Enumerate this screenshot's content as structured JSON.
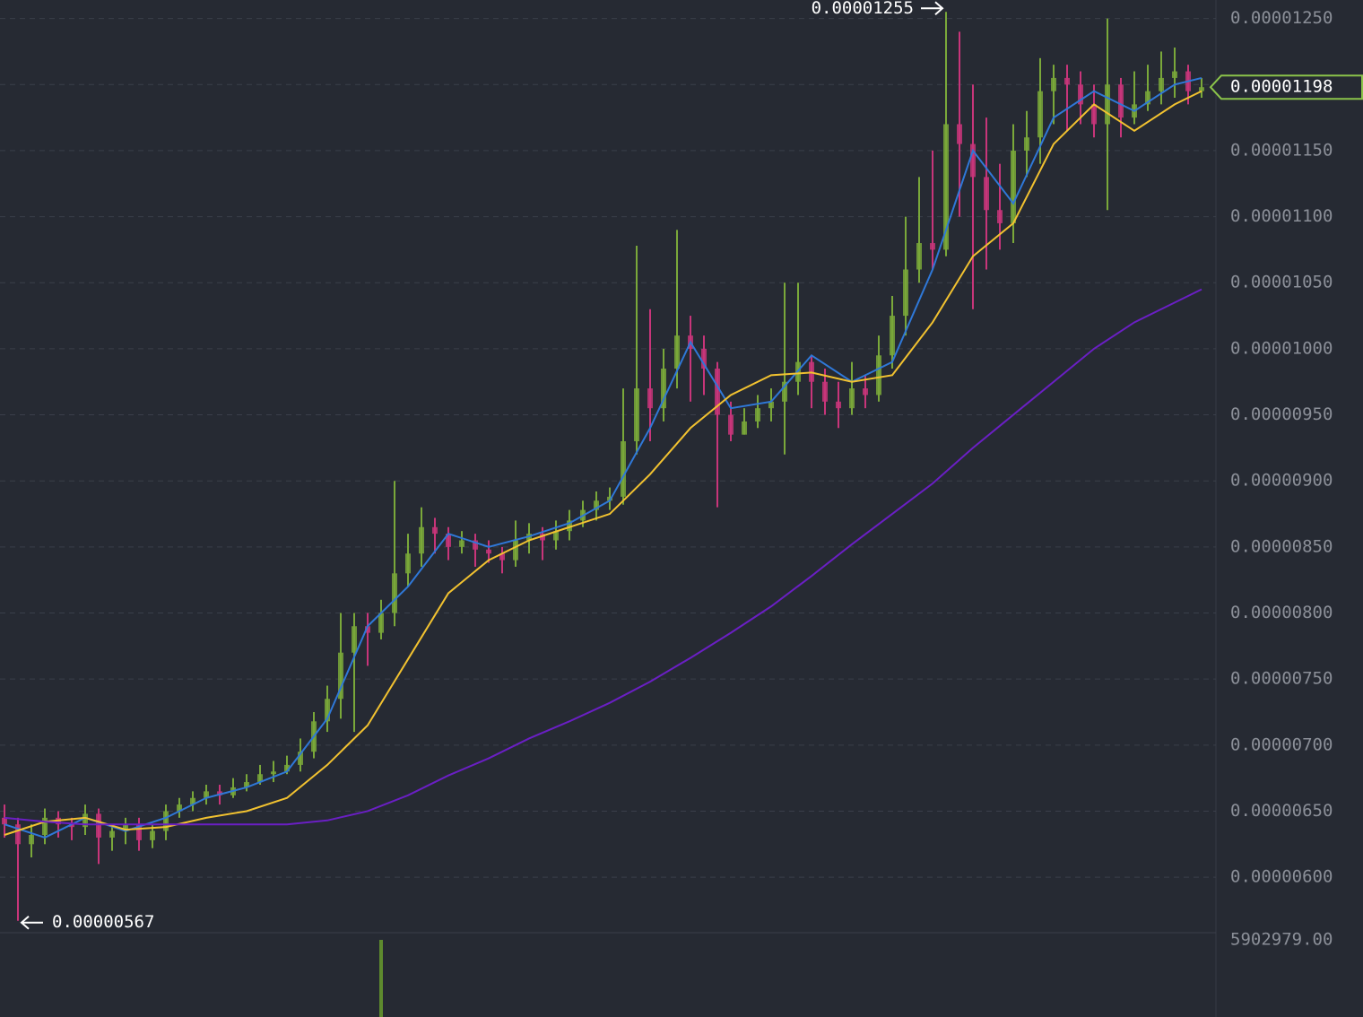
{
  "chart_data": {
    "type": "candlestick",
    "ylim": [
      5.58e-06,
      1.264e-05
    ],
    "yticks": [
      {
        "value": 1.25e-05,
        "label": "0.00001250"
      },
      {
        "value": 1.2e-05,
        "label": "0.00001200"
      },
      {
        "value": 1.15e-05,
        "label": "0.00001150"
      },
      {
        "value": 1.1e-05,
        "label": "0.00001100"
      },
      {
        "value": 1.05e-05,
        "label": "0.00001050"
      },
      {
        "value": 1e-05,
        "label": "0.00001000"
      },
      {
        "value": 9.5e-06,
        "label": "0.00000950"
      },
      {
        "value": 9e-06,
        "label": "0.00000900"
      },
      {
        "value": 8.5e-06,
        "label": "0.00000850"
      },
      {
        "value": 8e-06,
        "label": "0.00000800"
      },
      {
        "value": 7.5e-06,
        "label": "0.00000750"
      },
      {
        "value": 7e-06,
        "label": "0.00000700"
      },
      {
        "value": 6.5e-06,
        "label": "0.00000650"
      },
      {
        "value": 6e-06,
        "label": "0.00000600"
      }
    ],
    "grid": true,
    "up_color": "#7aa83a",
    "down_color": "#c8357a",
    "open": [
      6.45e-06,
      6.4e-06,
      6.25e-06,
      6.32e-06,
      6.45e-06,
      6.4e-06,
      6.38e-06,
      6.48e-06,
      6.3e-06,
      6.35e-06,
      6.4e-06,
      6.28e-06,
      6.35e-06,
      6.5e-06,
      6.55e-06,
      6.6e-06,
      6.65e-06,
      6.62e-06,
      6.68e-06,
      6.72e-06,
      6.78e-06,
      6.8e-06,
      6.85e-06,
      6.95e-06,
      7.18e-06,
      7.35e-06,
      7.7e-06,
      7.9e-06,
      7.85e-06,
      8e-06,
      8.3e-06,
      8.45e-06,
      8.65e-06,
      8.6e-06,
      8.5e-06,
      8.55e-06,
      8.48e-06,
      8.45e-06,
      8.4e-06,
      8.55e-06,
      8.6e-06,
      8.55e-06,
      8.62e-06,
      8.7e-06,
      8.78e-06,
      8.85e-06,
      8.88e-06,
      9.3e-06,
      9.7e-06,
      9.55e-06,
      9.85e-06,
      1.01e-05,
      1e-05,
      9.85e-06,
      9.5e-06,
      9.35e-06,
      9.45e-06,
      9.55e-06,
      9.6e-06,
      9.75e-06,
      9.9e-06,
      9.75e-06,
      9.6e-06,
      9.55e-06,
      9.7e-06,
      9.65e-06,
      9.95e-06,
      1.025e-05,
      1.06e-05,
      1.08e-05,
      1.075e-05,
      1.17e-05,
      1.155e-05,
      1.13e-05,
      1.105e-05,
      1.095e-05,
      1.15e-05,
      1.16e-05,
      1.195e-05,
      1.205e-05,
      1.2e-05,
      1.185e-05,
      1.17e-05,
      1.2e-05,
      1.175e-05,
      1.185e-05,
      1.195e-05,
      1.205e-05,
      1.21e-05,
      1.195e-05
    ],
    "high": [
      6.55e-06,
      6.45e-06,
      6.4e-06,
      6.52e-06,
      6.5e-06,
      6.45e-06,
      6.55e-06,
      6.52e-06,
      6.4e-06,
      6.45e-06,
      6.45e-06,
      6.4e-06,
      6.55e-06,
      6.6e-06,
      6.65e-06,
      6.7e-06,
      6.7e-06,
      6.75e-06,
      6.78e-06,
      6.85e-06,
      6.88e-06,
      6.92e-06,
      7.05e-06,
      7.25e-06,
      7.45e-06,
      8e-06,
      8e-06,
      8e-06,
      8.1e-06,
      9e-06,
      8.6e-06,
      8.8e-06,
      8.72e-06,
      8.65e-06,
      8.62e-06,
      8.6e-06,
      8.55e-06,
      8.5e-06,
      8.7e-06,
      8.68e-06,
      8.65e-06,
      8.7e-06,
      8.78e-06,
      8.85e-06,
      8.92e-06,
      8.95e-06,
      9.7e-06,
      1.078e-05,
      1.03e-05,
      1e-05,
      1.09e-05,
      1.025e-05,
      1.01e-05,
      9.9e-06,
      9.6e-06,
      9.55e-06,
      9.65e-06,
      9.7e-06,
      1.05e-05,
      1.05e-05,
      9.95e-06,
      9.85e-06,
      9.75e-06,
      9.9e-06,
      9.8e-06,
      1.01e-05,
      1.04e-05,
      1.1e-05,
      1.13e-05,
      1.15e-05,
      1.255e-05,
      1.24e-05,
      1.2e-05,
      1.175e-05,
      1.14e-05,
      1.17e-05,
      1.18e-05,
      1.22e-05,
      1.215e-05,
      1.215e-05,
      1.21e-05,
      1.2e-05,
      1.25e-05,
      1.205e-05,
      1.21e-05,
      1.215e-05,
      1.225e-05,
      1.228e-05,
      1.215e-05,
      1.205e-05
    ],
    "low": [
      6.3e-06,
      5.67e-06,
      6.15e-06,
      6.25e-06,
      6.3e-06,
      6.28e-06,
      6.32e-06,
      6.1e-06,
      6.2e-06,
      6.25e-06,
      6.2e-06,
      6.22e-06,
      6.28e-06,
      6.45e-06,
      6.5e-06,
      6.55e-06,
      6.55e-06,
      6.6e-06,
      6.65e-06,
      6.7e-06,
      6.72e-06,
      6.78e-06,
      6.8e-06,
      6.9e-06,
      7.1e-06,
      7.2e-06,
      7.1e-06,
      7.6e-06,
      7.8e-06,
      7.9e-06,
      8.2e-06,
      8.35e-06,
      8.45e-06,
      8.4e-06,
      8.45e-06,
      8.35e-06,
      8.38e-06,
      8.3e-06,
      8.35e-06,
      8.45e-06,
      8.4e-06,
      8.48e-06,
      8.55e-06,
      8.65e-06,
      8.7e-06,
      8.78e-06,
      8.82e-06,
      9.2e-06,
      9.3e-06,
      9.45e-06,
      9.7e-06,
      9.6e-06,
      9.65e-06,
      8.8e-06,
      9.3e-06,
      9.35e-06,
      9.4e-06,
      9.45e-06,
      9.2e-06,
      9.65e-06,
      9.55e-06,
      9.5e-06,
      9.4e-06,
      9.5e-06,
      9.55e-06,
      9.6e-06,
      9.85e-06,
      1.01e-05,
      1.05e-05,
      1.06e-05,
      1.07e-05,
      1.1e-05,
      1.03e-05,
      1.06e-05,
      1.075e-05,
      1.08e-05,
      1.13e-05,
      1.14e-05,
      1.17e-05,
      1.165e-05,
      1.17e-05,
      1.16e-05,
      1.105e-05,
      1.16e-05,
      1.17e-05,
      1.18e-05,
      1.185e-05,
      1.19e-05,
      1.185e-05,
      1.19e-05
    ],
    "close": [
      6.4e-06,
      6.25e-06,
      6.32e-06,
      6.45e-06,
      6.4e-06,
      6.38e-06,
      6.48e-06,
      6.3e-06,
      6.35e-06,
      6.4e-06,
      6.28e-06,
      6.35e-06,
      6.5e-06,
      6.55e-06,
      6.6e-06,
      6.65e-06,
      6.62e-06,
      6.68e-06,
      6.72e-06,
      6.78e-06,
      6.8e-06,
      6.85e-06,
      6.95e-06,
      7.18e-06,
      7.35e-06,
      7.7e-06,
      7.9e-06,
      7.85e-06,
      8e-06,
      8.3e-06,
      8.45e-06,
      8.65e-06,
      8.6e-06,
      8.5e-06,
      8.55e-06,
      8.48e-06,
      8.45e-06,
      8.4e-06,
      8.55e-06,
      8.6e-06,
      8.55e-06,
      8.62e-06,
      8.7e-06,
      8.78e-06,
      8.85e-06,
      8.88e-06,
      9.3e-06,
      9.7e-06,
      9.55e-06,
      9.85e-06,
      1.01e-05,
      1e-05,
      9.85e-06,
      9.5e-06,
      9.35e-06,
      9.45e-06,
      9.55e-06,
      9.6e-06,
      9.75e-06,
      9.9e-06,
      9.75e-06,
      9.6e-06,
      9.55e-06,
      9.7e-06,
      9.65e-06,
      9.95e-06,
      1.025e-05,
      1.06e-05,
      1.08e-05,
      1.075e-05,
      1.17e-05,
      1.155e-05,
      1.13e-05,
      1.105e-05,
      1.095e-05,
      1.15e-05,
      1.16e-05,
      1.195e-05,
      1.205e-05,
      1.2e-05,
      1.185e-05,
      1.17e-05,
      1.2e-05,
      1.175e-05,
      1.185e-05,
      1.195e-05,
      1.205e-05,
      1.21e-05,
      1.195e-05,
      1.198e-05
    ],
    "series": [
      {
        "color": "#2f78d8",
        "x": [
          0,
          3,
          6,
          9,
          12,
          15,
          18,
          21,
          24,
          27,
          30,
          33,
          36,
          39,
          42,
          45,
          48,
          51,
          54,
          57,
          60,
          63,
          66,
          69,
          72,
          75,
          78,
          81,
          84,
          87,
          89
        ],
        "values": [
          6.4e-06,
          6.3e-06,
          6.45e-06,
          6.35e-06,
          6.45e-06,
          6.6e-06,
          6.68e-06,
          6.8e-06,
          7.2e-06,
          7.9e-06,
          8.2e-06,
          8.6e-06,
          8.5e-06,
          8.58e-06,
          8.68e-06,
          8.85e-06,
          9.4e-06,
          1.005e-05,
          9.55e-06,
          9.6e-06,
          9.95e-06,
          9.75e-06,
          9.9e-06,
          1.06e-05,
          1.15e-05,
          1.11e-05,
          1.175e-05,
          1.195e-05,
          1.18e-05,
          1.2e-05,
          1.205e-05
        ]
      },
      {
        "color": "#f2c230",
        "x": [
          0,
          3,
          6,
          9,
          12,
          15,
          18,
          21,
          24,
          27,
          30,
          33,
          36,
          39,
          42,
          45,
          48,
          51,
          54,
          57,
          60,
          63,
          66,
          69,
          72,
          75,
          78,
          81,
          84,
          87,
          89
        ],
        "values": [
          6.32e-06,
          6.42e-06,
          6.45e-06,
          6.36e-06,
          6.38e-06,
          6.45e-06,
          6.5e-06,
          6.6e-06,
          6.85e-06,
          7.15e-06,
          7.65e-06,
          8.15e-06,
          8.4e-06,
          8.55e-06,
          8.65e-06,
          8.75e-06,
          9.05e-06,
          9.4e-06,
          9.65e-06,
          9.8e-06,
          9.82e-06,
          9.75e-06,
          9.8e-06,
          1.02e-05,
          1.07e-05,
          1.095e-05,
          1.155e-05,
          1.185e-05,
          1.165e-05,
          1.185e-05,
          1.195e-05
        ]
      },
      {
        "color": "#6a1fc4",
        "x": [
          0,
          3,
          6,
          9,
          12,
          15,
          18,
          21,
          24,
          27,
          30,
          33,
          36,
          39,
          42,
          45,
          48,
          51,
          54,
          57,
          60,
          63,
          66,
          69,
          72,
          75,
          78,
          81,
          84,
          87,
          89
        ],
        "values": [
          6.45e-06,
          6.42e-06,
          6.4e-06,
          6.4e-06,
          6.4e-06,
          6.4e-06,
          6.4e-06,
          6.4e-06,
          6.43e-06,
          6.5e-06,
          6.62e-06,
          6.77e-06,
          6.9e-06,
          7.05e-06,
          7.18e-06,
          7.32e-06,
          7.48e-06,
          7.66e-06,
          7.85e-06,
          8.05e-06,
          8.28e-06,
          8.52e-06,
          8.75e-06,
          8.98e-06,
          9.25e-06,
          9.5e-06,
          9.75e-06,
          1e-05,
          1.02e-05,
          1.035e-05,
          1.045e-05
        ]
      }
    ],
    "high_marker": {
      "x": 70,
      "value": 1.255e-05
    },
    "low_marker": {
      "x": 1,
      "value": 5.67e-06
    },
    "last_price": 1.198e-05,
    "last_price_color": "#8bc34a",
    "volume": {
      "x": [
        28
      ],
      "values": [
        5902979
      ],
      "color": "#5d8a2e",
      "ylim": [
        0,
        5902979
      ],
      "yticks": [
        {
          "value": 5902979,
          "label": "5902979.00"
        }
      ]
    }
  }
}
